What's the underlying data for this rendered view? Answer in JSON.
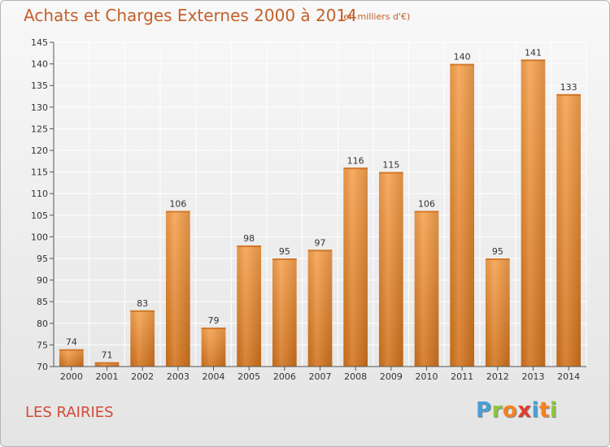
{
  "header": {
    "title": "Achats et Charges Externes 2000 à 2014",
    "subtitle": "(en milliers d'€)"
  },
  "footer": {
    "location": "LES RAIRIES",
    "logo": {
      "letters": [
        "P",
        "r",
        "o",
        "x",
        "i",
        "t",
        "i"
      ],
      "colors": [
        "#4a9fd6",
        "#8dc63f",
        "#f58220",
        "#e03c31",
        "#4a9fd6",
        "#f58220",
        "#8dc63f"
      ]
    }
  },
  "chart_data": {
    "type": "bar",
    "title": "Achats et Charges Externes 2000 à 2014",
    "subtitle": "(en milliers d'€)",
    "categories": [
      "2000",
      "2001",
      "2002",
      "2003",
      "2004",
      "2005",
      "2006",
      "2007",
      "2008",
      "2009",
      "2010",
      "2011",
      "2012",
      "2013",
      "2014"
    ],
    "values": [
      74,
      71,
      83,
      106,
      79,
      98,
      95,
      97,
      116,
      115,
      106,
      140,
      95,
      141,
      133
    ],
    "value_labels": [
      "74",
      "71",
      "83",
      "106",
      "79",
      "98",
      "95",
      "97",
      "116",
      "115",
      "106",
      "140",
      "95",
      "141",
      "133"
    ],
    "ylim": [
      70,
      145
    ],
    "yticks": [
      70,
      75,
      80,
      85,
      90,
      95,
      100,
      105,
      110,
      115,
      120,
      125,
      130,
      135,
      140,
      145
    ],
    "grid": true,
    "legend": "none",
    "colors": {
      "bar_light": "#f7a24f",
      "bar_dark": "#d2731d",
      "grid": "#ffffff",
      "axis": "#555555"
    }
  }
}
